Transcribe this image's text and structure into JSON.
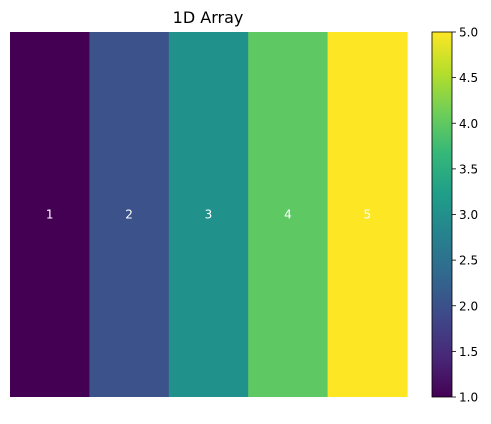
{
  "chart_data": {
    "type": "heatmap",
    "title": "1D Array",
    "xlabel": "",
    "ylabel": "",
    "values": [
      [
        1,
        2,
        3,
        4,
        5
      ]
    ],
    "cell_labels": [
      [
        "1",
        "2",
        "3",
        "4",
        "5"
      ]
    ],
    "colormap": "viridis",
    "cell_colors": [
      "#440154",
      "#3b528b",
      "#21918c",
      "#5ec962",
      "#fde725"
    ],
    "annotation_color": "#ffffff",
    "show_axes": false,
    "grid": false,
    "colorbar": {
      "location": "right",
      "range": [
        1.0,
        5.0
      ],
      "ticks": [
        "1.0",
        "1.5",
        "2.0",
        "2.5",
        "3.0",
        "3.5",
        "4.0",
        "4.5",
        "5.0"
      ],
      "tick_values": [
        1.0,
        1.5,
        2.0,
        2.5,
        3.0,
        3.5,
        4.0,
        4.5,
        5.0
      ],
      "colors": [
        "#440154",
        "#482878",
        "#3e4989",
        "#31688e",
        "#26828e",
        "#1f9e89",
        "#35b779",
        "#6ece58",
        "#b5de2b",
        "#fde725"
      ]
    }
  }
}
